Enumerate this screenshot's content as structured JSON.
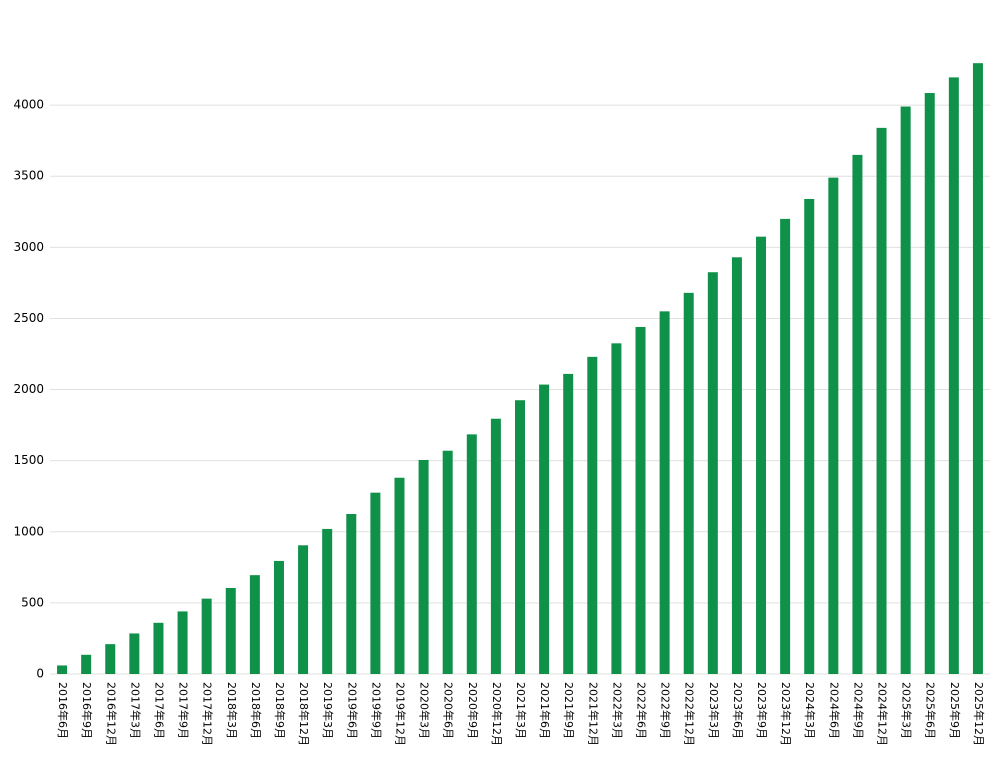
{
  "chart_data": {
    "type": "bar",
    "categories": [
      "2016年6月",
      "2016年9月",
      "2016年12月",
      "2017年3月",
      "2017年6月",
      "2017年9月",
      "2017年12月",
      "2018年3月",
      "2018年6月",
      "2018年9月",
      "2018年12月",
      "2019年3月",
      "2019年6月",
      "2019年9月",
      "2019年12月",
      "2020年3月",
      "2020年6月",
      "2020年9月",
      "2020年12月",
      "2021年3月",
      "2021年6月",
      "2021年9月",
      "2021年12月",
      "2022年3月",
      "2022年6月",
      "2022年9月",
      "2022年12月",
      "2023年3月",
      "2023年6月",
      "2023年9月",
      "2023年12月",
      "2024年3月",
      "2024年6月",
      "2024年9月",
      "2024年12月",
      "2025年3月",
      "2025年6月",
      "2025年9月",
      "2025年12月"
    ],
    "values": [
      60,
      135,
      210,
      285,
      360,
      440,
      530,
      605,
      695,
      795,
      905,
      1020,
      1125,
      1275,
      1380,
      1505,
      1570,
      1685,
      1795,
      1925,
      2035,
      2110,
      2230,
      2325,
      2440,
      2550,
      2680,
      2825,
      2930,
      3075,
      3200,
      3340,
      3490,
      3650,
      3840,
      3990,
      4085,
      4195,
      4295
    ],
    "color": "#10914a",
    "ylim": [
      0,
      4500
    ],
    "yticks": [
      0,
      500,
      1000,
      1500,
      2000,
      2500,
      3000,
      3500,
      4000
    ],
    "grid": true
  }
}
